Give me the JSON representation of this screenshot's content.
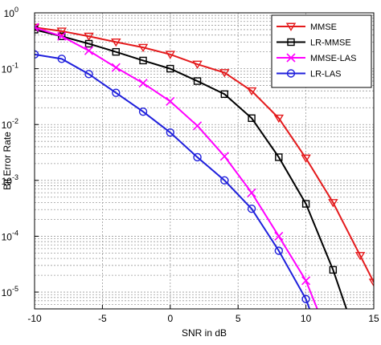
{
  "chart_data": {
    "type": "line",
    "title": "",
    "xlabel": "SNR in dB",
    "ylabel": "Bit Error Rate",
    "xlim": [
      -10,
      15
    ],
    "ylim": [
      5e-06,
      1
    ],
    "yscale": "log",
    "grid": true,
    "legend_position": "top-right",
    "x_ticks": [
      -10,
      -5,
      0,
      5,
      10,
      15
    ],
    "x_tick_labels": [
      "-10",
      "-5",
      "0",
      "5",
      "10",
      "15"
    ],
    "y_ticks": [
      {
        "value": 1,
        "base": "10",
        "exp": "0"
      },
      {
        "value": 0.1,
        "base": "10",
        "exp": "-1"
      },
      {
        "value": 0.01,
        "base": "10",
        "exp": "-2"
      },
      {
        "value": 0.001,
        "base": "10",
        "exp": "-3"
      },
      {
        "value": 0.0001,
        "base": "10",
        "exp": "-4"
      },
      {
        "value": 1e-05,
        "base": "10",
        "exp": "-5"
      }
    ],
    "series": [
      {
        "name": "MMSE",
        "color": "#e41a1c",
        "marker": "triangle-down",
        "x": [
          -10,
          -8,
          -6,
          -4,
          -2,
          0,
          2,
          4,
          6,
          8,
          10,
          12,
          14,
          15
        ],
        "y": [
          0.55,
          0.47,
          0.38,
          0.3,
          0.24,
          0.18,
          0.12,
          0.085,
          0.04,
          0.013,
          0.0025,
          0.0004,
          4.5e-05,
          1.5e-05
        ]
      },
      {
        "name": "LR-MMSE",
        "color": "#000000",
        "marker": "square",
        "x": [
          -10,
          -8,
          -6,
          -4,
          -2,
          0,
          2,
          4,
          6,
          8,
          10,
          12,
          13.3
        ],
        "y": [
          0.5,
          0.38,
          0.28,
          0.2,
          0.14,
          0.1,
          0.06,
          0.035,
          0.013,
          0.0026,
          0.00038,
          2.5e-05,
          3e-06
        ]
      },
      {
        "name": "MMSE-LAS",
        "color": "#ff00ff",
        "marker": "x",
        "x": [
          -10,
          -8,
          -6,
          -4,
          -2,
          0,
          2,
          4,
          6,
          8,
          10,
          11.2
        ],
        "y": [
          0.55,
          0.38,
          0.21,
          0.105,
          0.055,
          0.026,
          0.0095,
          0.0027,
          0.0006,
          0.0001,
          1.6e-05,
          3e-06
        ]
      },
      {
        "name": "LR-LAS",
        "color": "#1f1fdc",
        "marker": "circle",
        "x": [
          -10,
          -8,
          -6,
          -4,
          -2,
          0,
          2,
          4,
          6,
          8,
          10,
          10.6
        ],
        "y": [
          0.18,
          0.15,
          0.08,
          0.037,
          0.017,
          0.0072,
          0.0026,
          0.001,
          0.00031,
          5.5e-05,
          7.5e-06,
          3e-06
        ]
      }
    ]
  }
}
